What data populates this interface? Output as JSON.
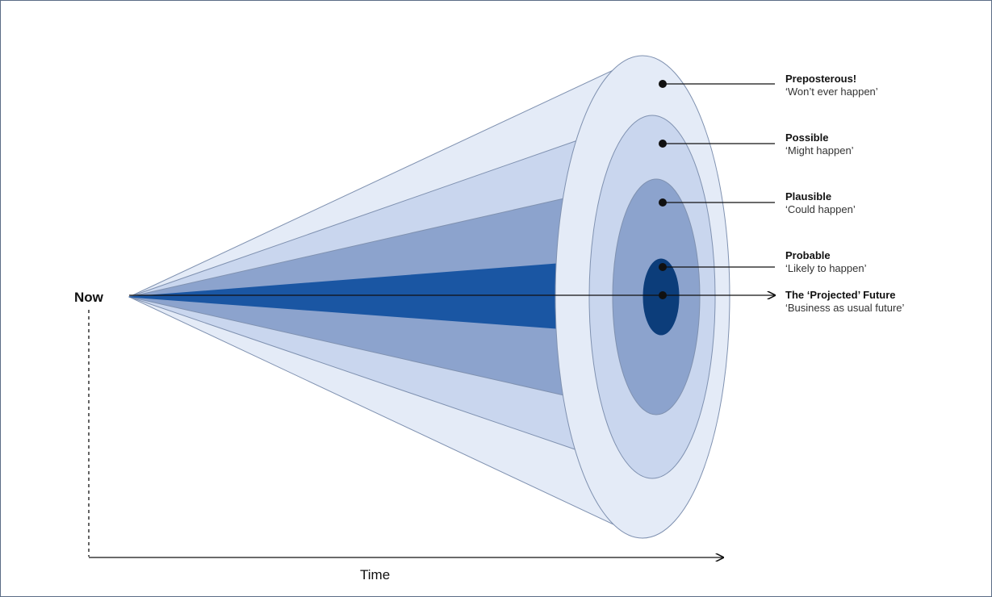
{
  "diagram": {
    "origin_label": "Now",
    "axis_label": "Time",
    "colors": {
      "preposterous": "#e4ebf7",
      "possible": "#c9d6ee",
      "plausible": "#8ca3cd",
      "probable": "#1a56a3",
      "projected": "#0c3d7a",
      "outline": "#7f91b0",
      "leader": "#111111"
    },
    "cones": [
      {
        "id": "preposterous",
        "title": "Preposterous!",
        "subtitle": "‘Won’t ever happen’"
      },
      {
        "id": "possible",
        "title": "Possible",
        "subtitle": "‘Might happen’"
      },
      {
        "id": "plausible",
        "title": "Plausible",
        "subtitle": "‘Could happen’"
      },
      {
        "id": "probable",
        "title": "Probable",
        "subtitle": "‘Likely to happen’"
      },
      {
        "id": "projected",
        "title": "The ‘Projected’ Future",
        "subtitle": "‘Business as usual future’"
      }
    ]
  }
}
